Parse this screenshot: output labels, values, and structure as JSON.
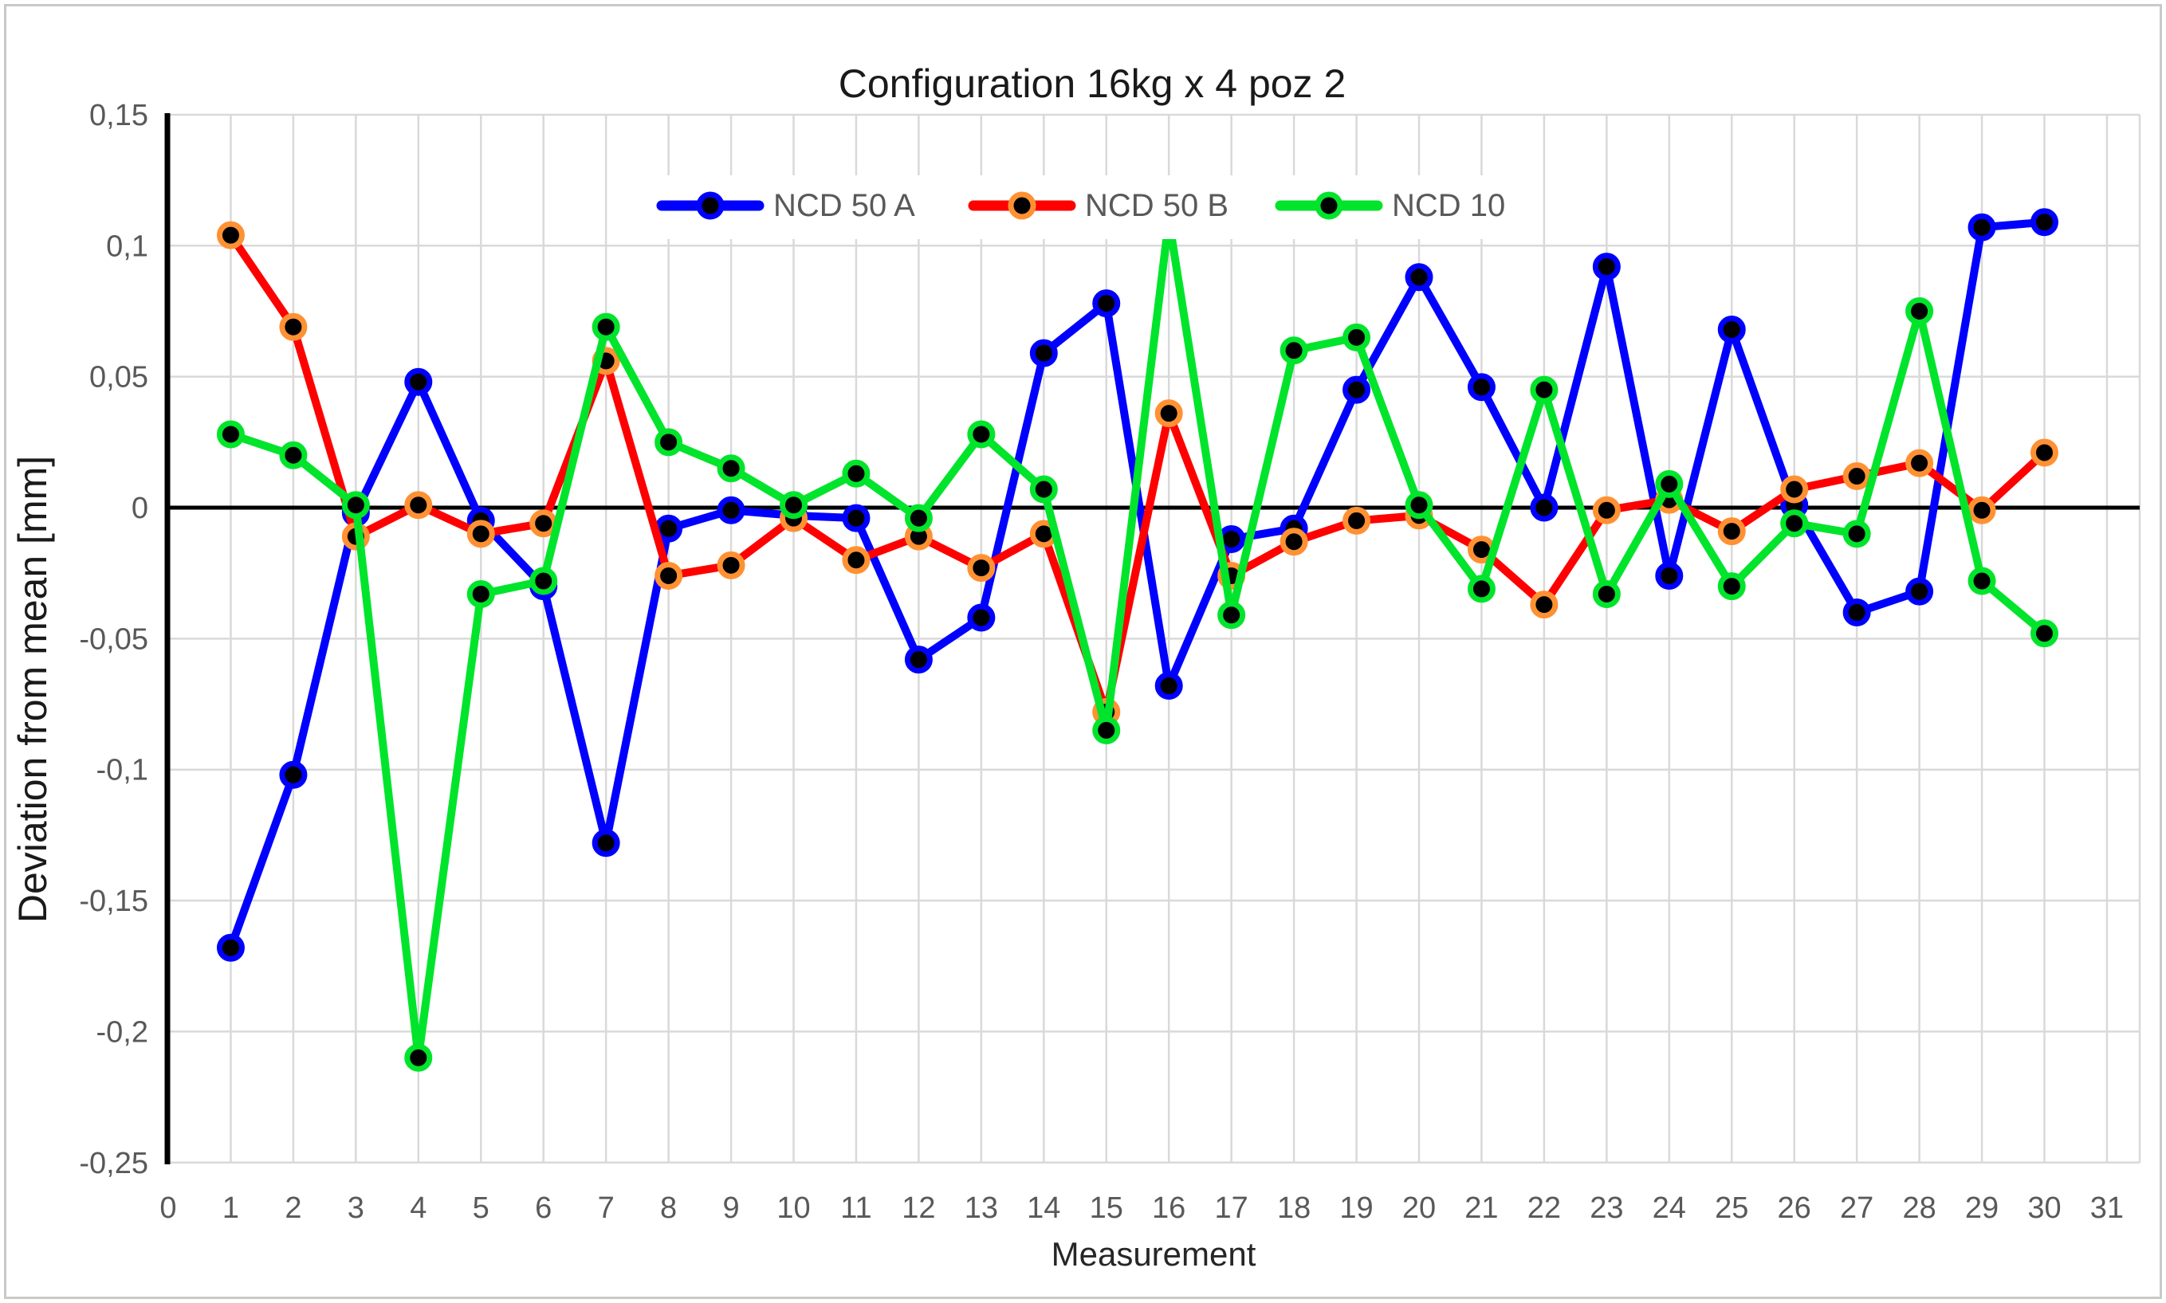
{
  "figure": {
    "title": "Configuration 16kg x 4 poz 2",
    "x_axis_title": "Measurement",
    "y_axis_title": "Deviation from mean [mm]"
  },
  "chart_data": {
    "type": "line",
    "title": "Configuration 16kg x 4 poz 2",
    "xlabel": "Measurement",
    "ylabel": "Deviation from mean [mm]",
    "xlim": [
      0,
      31
    ],
    "ylim": [
      -0.25,
      0.15
    ],
    "grid": true,
    "decimal_separator": ",",
    "legend_position": "top-center-inside",
    "x": [
      1,
      2,
      3,
      4,
      5,
      6,
      7,
      8,
      9,
      10,
      11,
      12,
      13,
      14,
      15,
      16,
      17,
      18,
      19,
      20,
      21,
      22,
      23,
      24,
      25,
      26,
      27,
      28,
      29,
      30
    ],
    "x_tick_labels": [
      "0",
      "1",
      "2",
      "3",
      "4",
      "5",
      "6",
      "7",
      "8",
      "9",
      "10",
      "11",
      "12",
      "13",
      "14",
      "15",
      "16",
      "17",
      "18",
      "19",
      "20",
      "21",
      "22",
      "23",
      "24",
      "25",
      "26",
      "27",
      "28",
      "29",
      "30",
      "31"
    ],
    "y_ticks": [
      0.15,
      0.1,
      0.05,
      0,
      -0.05,
      -0.1,
      -0.15,
      -0.2,
      -0.25
    ],
    "y_tick_labels": [
      "0,15",
      "0,1",
      "0,05",
      "0",
      "-0,05",
      "-0,1",
      "-0,15",
      "-0,2",
      "-0,25"
    ],
    "series": [
      {
        "name": "NCD 50 A",
        "color": "#0000FF",
        "ring_color": "#0000FF",
        "marker": "black-circle",
        "values": [
          -0.168,
          -0.102,
          -0.002,
          0.048,
          -0.005,
          -0.03,
          -0.128,
          -0.008,
          -0.001,
          -0.003,
          -0.004,
          -0.058,
          -0.042,
          0.059,
          0.078,
          -0.068,
          -0.012,
          -0.008,
          0.045,
          0.088,
          0.046,
          0.0,
          0.092,
          -0.026,
          0.068,
          0.001,
          -0.04,
          -0.032,
          0.107,
          0.109
        ]
      },
      {
        "name": "NCD 50 B",
        "color": "#FF0000",
        "ring_color": "#FF9133",
        "marker": "black-circle",
        "values": [
          0.104,
          0.069,
          -0.011,
          0.001,
          -0.01,
          -0.006,
          0.056,
          -0.026,
          -0.022,
          -0.004,
          -0.02,
          -0.011,
          -0.023,
          -0.01,
          -0.078,
          0.036,
          -0.026,
          -0.013,
          -0.005,
          -0.003,
          -0.016,
          -0.037,
          -0.001,
          0.003,
          -0.009,
          0.007,
          0.012,
          0.017,
          -0.001,
          0.021
        ]
      },
      {
        "name": "NCD 10",
        "color": "#00E42B",
        "ring_color": "#00E42B",
        "marker": "black-circle",
        "values": [
          0.028,
          0.02,
          0.001,
          -0.21,
          -0.033,
          -0.028,
          0.069,
          0.025,
          0.015,
          0.001,
          0.013,
          -0.004,
          0.028,
          0.007,
          -0.085,
          0.11,
          -0.041,
          0.06,
          0.065,
          0.001,
          -0.031,
          0.045,
          -0.033,
          0.009,
          -0.03,
          -0.006,
          -0.01,
          0.075,
          -0.028,
          -0.048
        ]
      }
    ]
  },
  "colors": {
    "background": "#ffffff",
    "gridline": "#d9d9d9",
    "zero_line": "#000000",
    "axis_line": "#000000",
    "tick_text": "#595959",
    "title_text": "#1a1a1a",
    "marker_fill": "#000000",
    "legend_text": "#595959",
    "frame_border": "#c9c9c9"
  }
}
